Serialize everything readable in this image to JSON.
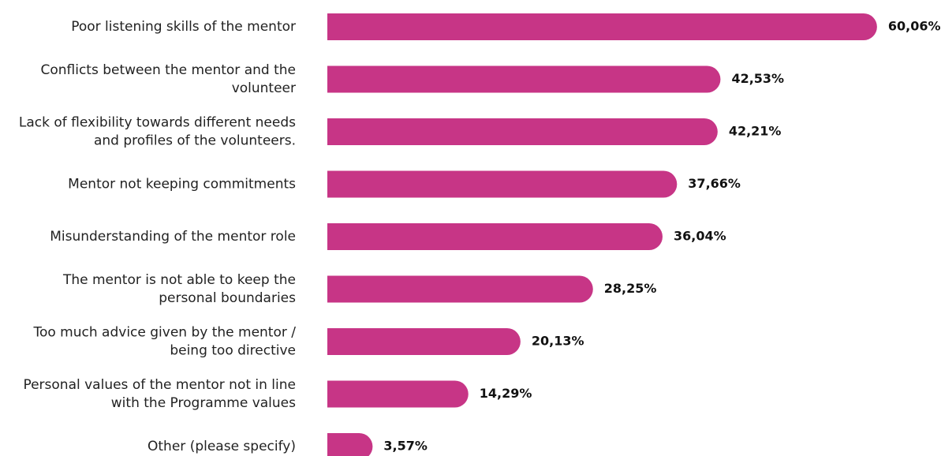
{
  "chart_data": {
    "type": "bar",
    "orientation": "horizontal",
    "color": "#c73586",
    "categories": [
      [
        "Poor listening skills of the mentor"
      ],
      [
        "Conflicts between the mentor and the",
        "volunteer"
      ],
      [
        "Lack of flexibility towards different needs",
        "and profiles of the volunteers."
      ],
      [
        "Mentor not keeping commitments"
      ],
      [
        "Misunderstanding of the mentor role"
      ],
      [
        "The mentor is not able to keep the",
        "personal boundaries"
      ],
      [
        "Too much advice given by the mentor /",
        "being too directive"
      ],
      [
        "Personal values of the mentor not in line",
        "with the Programme values"
      ],
      [
        "Other (please specify)"
      ]
    ],
    "values": [
      60.06,
      42.53,
      42.21,
      37.66,
      36.04,
      28.25,
      20.13,
      14.29,
      3.57
    ],
    "value_labels": [
      "60,06%",
      "42,53%",
      "42,21%",
      "37,66%",
      "36,04%",
      "28,25%",
      "20,13%",
      "14,29%",
      "3,57%"
    ]
  }
}
